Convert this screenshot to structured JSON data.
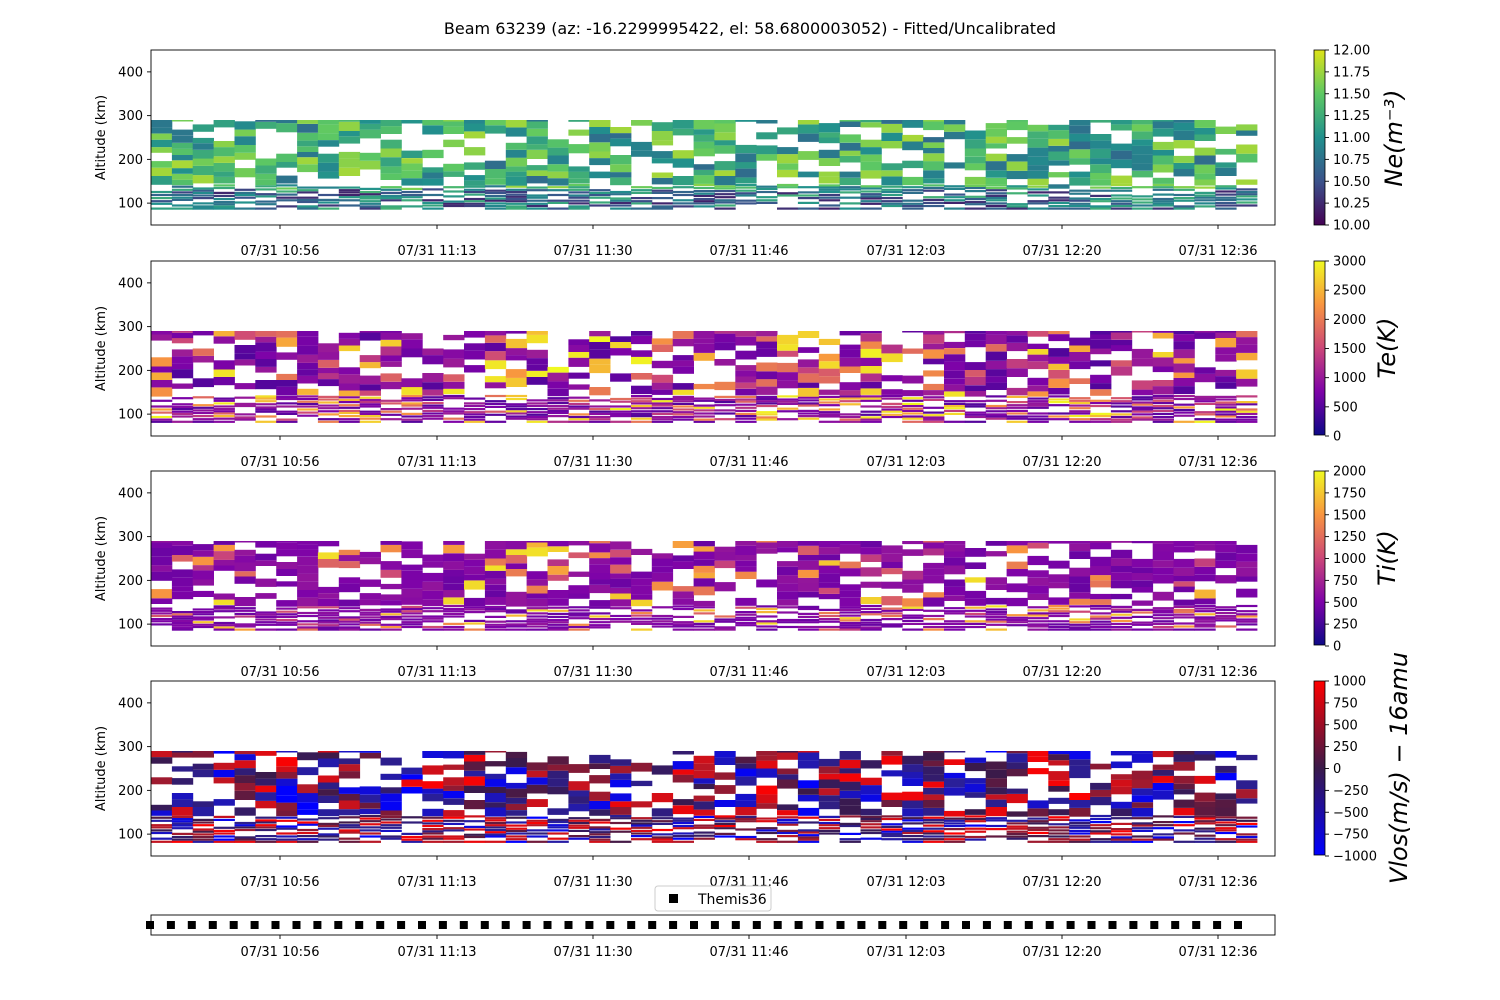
{
  "chart_data": {
    "type": "heatmap",
    "title": "Beam 63239 (az: -16.2299995422, el: 58.6800003052) - Fitted/Uncalibrated",
    "x": {
      "tick_labels": [
        "07/31 10:56",
        "07/31 11:13",
        "07/31 11:30",
        "07/31 11:46",
        "07/31 12:03",
        "07/31 12:20",
        "07/31 12:36"
      ],
      "range": [
        "07/31 10:42",
        "07/31 12:42"
      ]
    },
    "panels": [
      {
        "id": "ne",
        "ylabel": "Altitude (km)",
        "yticks": [
          100,
          200,
          300,
          400
        ],
        "ylim": [
          50,
          450
        ],
        "colorbar_label": "Ne(m⁻³)",
        "colormap": "viridis-like",
        "clim": [
          10.0,
          12.0
        ],
        "colorbar_ticks": [
          "10.00",
          "10.25",
          "10.50",
          "10.75",
          "11.00",
          "11.25",
          "11.50",
          "11.75",
          "12.00"
        ],
        "altitude_extent_km": [
          85,
          290
        ]
      },
      {
        "id": "te",
        "ylabel": "Altitude (km)",
        "yticks": [
          100,
          200,
          300,
          400
        ],
        "ylim": [
          50,
          450
        ],
        "colorbar_label": "Te(K)",
        "colormap": "plasma",
        "clim": [
          0,
          3000
        ],
        "colorbar_ticks": [
          "0",
          "500",
          "1000",
          "1500",
          "2000",
          "2500",
          "3000"
        ],
        "altitude_extent_km": [
          80,
          290
        ]
      },
      {
        "id": "ti",
        "ylabel": "Altitude (km)",
        "yticks": [
          100,
          200,
          300,
          400
        ],
        "ylim": [
          50,
          450
        ],
        "colorbar_label": "Ti(K)",
        "colormap": "plasma",
        "clim": [
          0,
          2000
        ],
        "colorbar_ticks": [
          "0",
          "250",
          "500",
          "750",
          "1000",
          "1250",
          "1500",
          "1750",
          "2000"
        ],
        "altitude_extent_km": [
          85,
          290
        ]
      },
      {
        "id": "vlos",
        "ylabel": "Altitude (km)",
        "yticks": [
          100,
          200,
          300,
          400
        ],
        "ylim": [
          50,
          450
        ],
        "colorbar_label": "Vlos(m/s) − 16amu",
        "colormap": "blue-red diverging",
        "clim": [
          -1000,
          1000
        ],
        "colorbar_ticks": [
          "−1000",
          "−750",
          "−500",
          "−250",
          "0",
          "250",
          "500",
          "750",
          "1000"
        ],
        "altitude_extent_km": [
          80,
          290
        ]
      }
    ],
    "legend": {
      "entries": [
        "Themis36"
      ],
      "placement": "above bottom strip"
    },
    "marker_strip": {
      "series": "Themis36",
      "marker": "square",
      "count": 53
    }
  }
}
